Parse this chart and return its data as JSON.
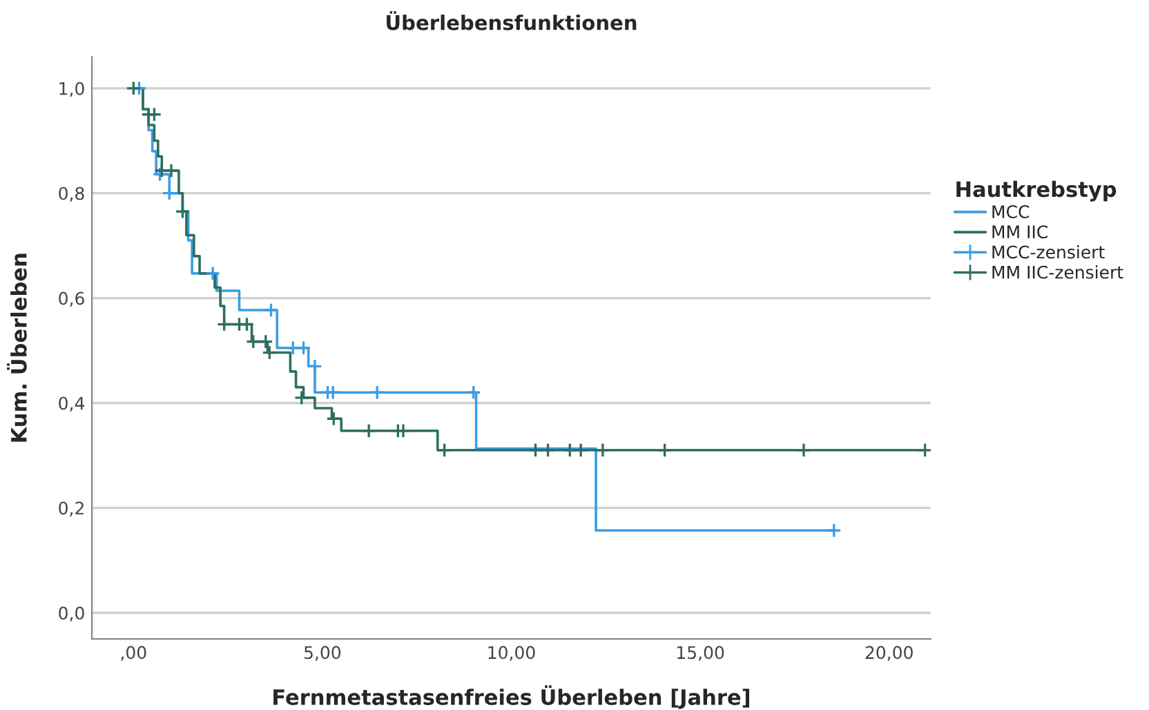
{
  "chart_data": {
    "type": "step",
    "title": "Überlebensfunktionen",
    "xlabel": "Fernmetastasenfreies Überleben [Jahre]",
    "ylabel": "Kum. Überleben",
    "legend_title": "Hautkrebstyp",
    "legend": "right",
    "grid": "y",
    "xlim": [
      -1.1,
      21.1
    ],
    "ylim": [
      -0.05,
      1.06
    ],
    "xticks": [
      {
        "value": 0,
        "label": ",00"
      },
      {
        "value": 5,
        "label": "5,00"
      },
      {
        "value": 10,
        "label": "10,00"
      },
      {
        "value": 15,
        "label": "15,00"
      },
      {
        "value": 20,
        "label": "20,00"
      }
    ],
    "yticks": [
      {
        "value": 0,
        "label": "0,0"
      },
      {
        "value": 0.2,
        "label": "0,2"
      },
      {
        "value": 0.4,
        "label": "0,4"
      },
      {
        "value": 0.6,
        "label": "0,6"
      },
      {
        "value": 0.8,
        "label": "0,8"
      },
      {
        "value": 1.0,
        "label": "1,0"
      }
    ],
    "series": [
      {
        "name": "MCC",
        "color": "#3a9de6",
        "x": [
          0,
          0.25,
          0.4,
          0.5,
          0.6,
          0.95,
          1.3,
          1.45,
          1.55,
          2.2,
          2.8,
          3.8,
          4.63,
          4.8,
          9.07,
          12.24,
          18.54
        ],
        "values": [
          1.0,
          0.96,
          0.92,
          0.88,
          0.836,
          0.8,
          0.765,
          0.71,
          0.647,
          0.614,
          0.577,
          0.505,
          0.47,
          0.42,
          0.313,
          0.157,
          0.157
        ]
      },
      {
        "name": "MM IIC",
        "color": "#2e6e60",
        "x": [
          0,
          0.25,
          0.4,
          0.55,
          0.65,
          0.75,
          1.2,
          1.3,
          1.4,
          1.6,
          1.75,
          2.15,
          2.3,
          2.4,
          3.13,
          3.55,
          4.15,
          4.3,
          4.5,
          4.8,
          5.25,
          5.5,
          8.05,
          20.95
        ],
        "values": [
          1.0,
          0.96,
          0.93,
          0.9,
          0.87,
          0.843,
          0.8,
          0.765,
          0.72,
          0.68,
          0.647,
          0.62,
          0.585,
          0.55,
          0.517,
          0.496,
          0.46,
          0.43,
          0.41,
          0.39,
          0.37,
          0.347,
          0.31,
          0.31
        ]
      },
      {
        "name": "MCC-zensiert",
        "type": "scatter",
        "marker": "cross",
        "color": "#3a9de6",
        "x": [
          0.15,
          0.7,
          0.95,
          2.1,
          3.64,
          4.22,
          4.5,
          4.8,
          5.14,
          5.28,
          6.45,
          9.0,
          18.54
        ],
        "values": [
          1.0,
          0.836,
          0.8,
          0.647,
          0.577,
          0.505,
          0.505,
          0.47,
          0.42,
          0.42,
          0.42,
          0.42,
          0.157
        ]
      },
      {
        "name": "MM IIC-zensiert",
        "type": "scatter",
        "marker": "cross",
        "color": "#2e6e60",
        "x": [
          0.0,
          0.4,
          0.55,
          0.75,
          1.0,
          1.3,
          2.4,
          2.8,
          3.0,
          3.17,
          3.5,
          3.6,
          4.45,
          5.3,
          6.23,
          7.0,
          7.14,
          8.23,
          10.64,
          10.97,
          11.55,
          11.84,
          12.42,
          14.06,
          17.74,
          20.95
        ],
        "values": [
          1.0,
          0.95,
          0.95,
          0.843,
          0.843,
          0.765,
          0.55,
          0.55,
          0.55,
          0.517,
          0.517,
          0.496,
          0.41,
          0.37,
          0.347,
          0.347,
          0.347,
          0.31,
          0.31,
          0.31,
          0.31,
          0.31,
          0.31,
          0.31,
          0.31,
          0.31
        ]
      }
    ]
  }
}
